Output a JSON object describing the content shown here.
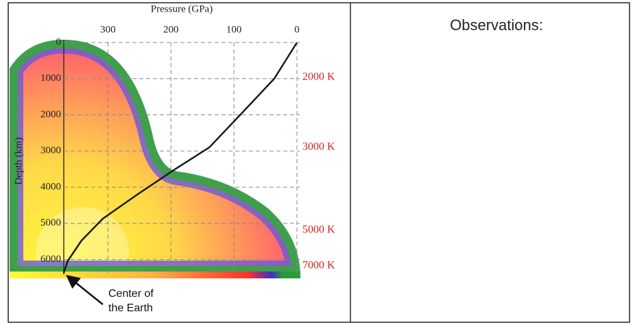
{
  "chart_data": {
    "type": "line",
    "x_label": "Pressure (GPa)",
    "y_label": "Depth (km)",
    "x": [
      0,
      36,
      90,
      139,
      193,
      253,
      308,
      342,
      364,
      370
    ],
    "values": [
      0,
      1000,
      2000,
      2900,
      3500,
      4200,
      4870,
      5480,
      6050,
      6371
    ],
    "color": "#1a1a1a",
    "xlim": [
      370,
      0
    ],
    "xticks": [
      300,
      200,
      100,
      0
    ],
    "ylim": [
      6371,
      0
    ],
    "yticks": [
      0,
      1000,
      2000,
      3000,
      4000,
      5000,
      6000
    ],
    "grid": true,
    "annotations": [
      "2000 K",
      "3000 K",
      "5000 K",
      "7000 K",
      "Center of the Earth"
    ]
  },
  "observations": "Observations:"
}
